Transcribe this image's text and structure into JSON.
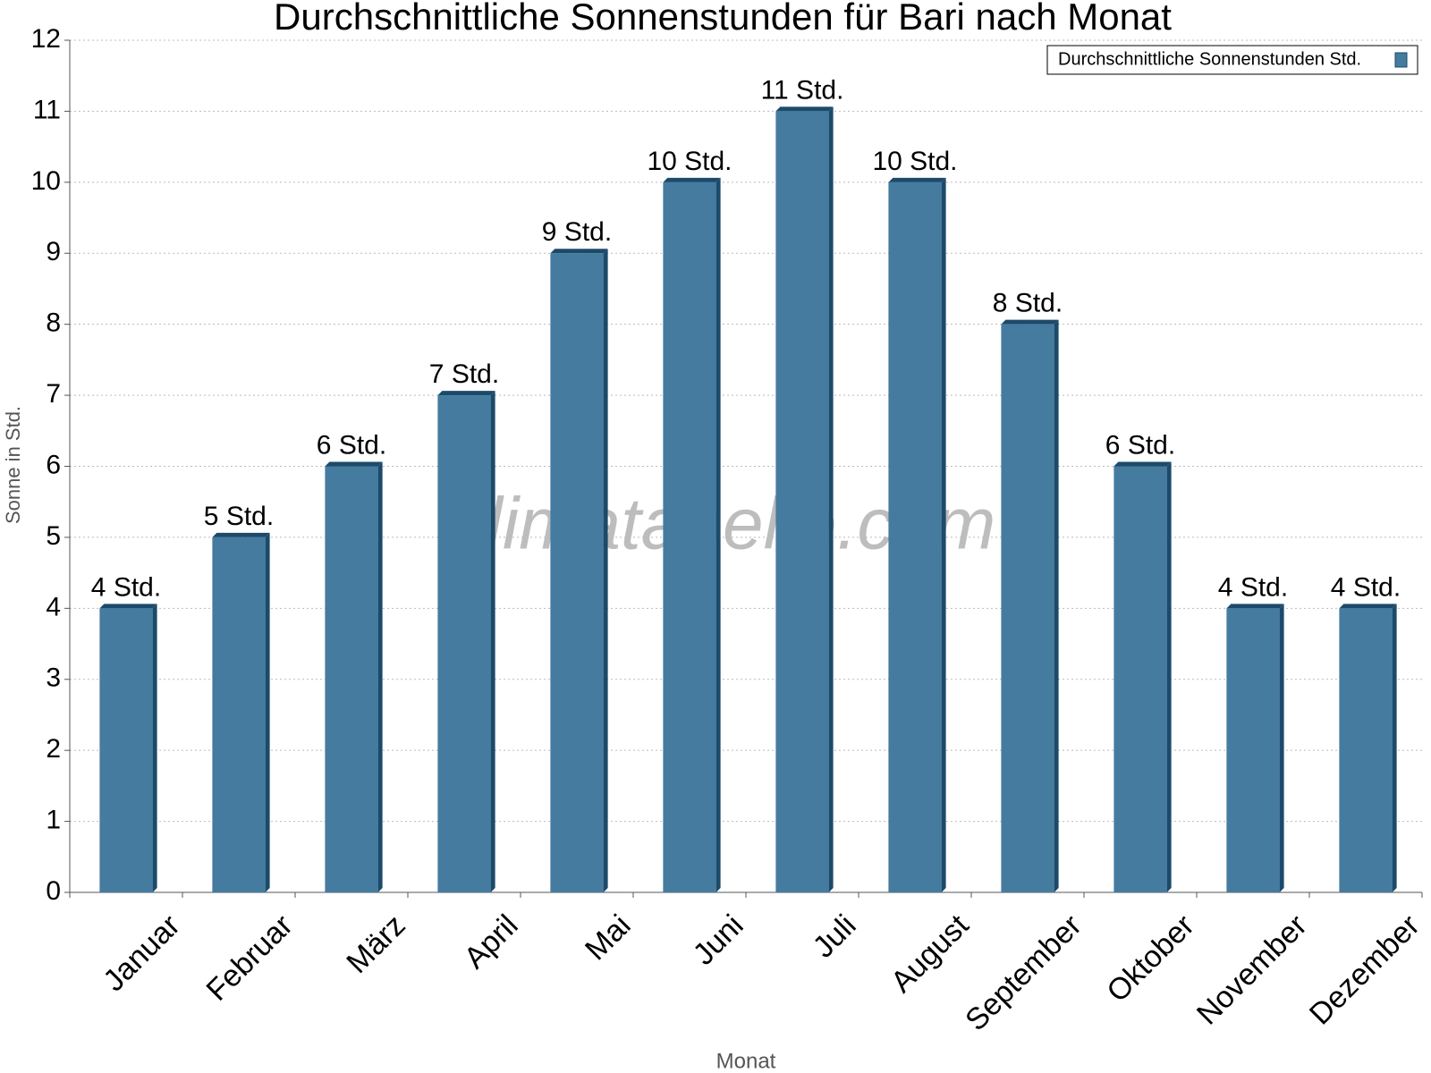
{
  "chart_data": {
    "type": "bar",
    "title": "Durchschnittliche Sonnenstunden für Bari nach Monat",
    "x_label": "Monat",
    "y_label": "Sonne in Std.",
    "watermark": "klimatabelle.com",
    "categories": [
      "Januar",
      "Februar",
      "März",
      "April",
      "Mai",
      "Juni",
      "Juli",
      "August",
      "September",
      "Oktober",
      "November",
      "Dezember"
    ],
    "series": [
      {
        "name": "Durchschnittliche Sonnenstunden Std.",
        "color": "#467ba0",
        "values": [
          4,
          5,
          6,
          7,
          9,
          10,
          11,
          10,
          8,
          6,
          4,
          4
        ],
        "value_labels": [
          "4 Std.",
          "5 Std.",
          "6 Std.",
          "7 Std.",
          "9 Std.",
          "10 Std.",
          "11 Std.",
          "10 Std.",
          "8 Std.",
          "6 Std.",
          "4 Std.",
          "4 Std."
        ]
      }
    ],
    "ylim": [
      0,
      12
    ],
    "yticks": [
      0,
      1,
      2,
      3,
      4,
      5,
      6,
      7,
      8,
      9,
      10,
      11,
      12
    ],
    "grid": true,
    "legend": "top-right"
  }
}
